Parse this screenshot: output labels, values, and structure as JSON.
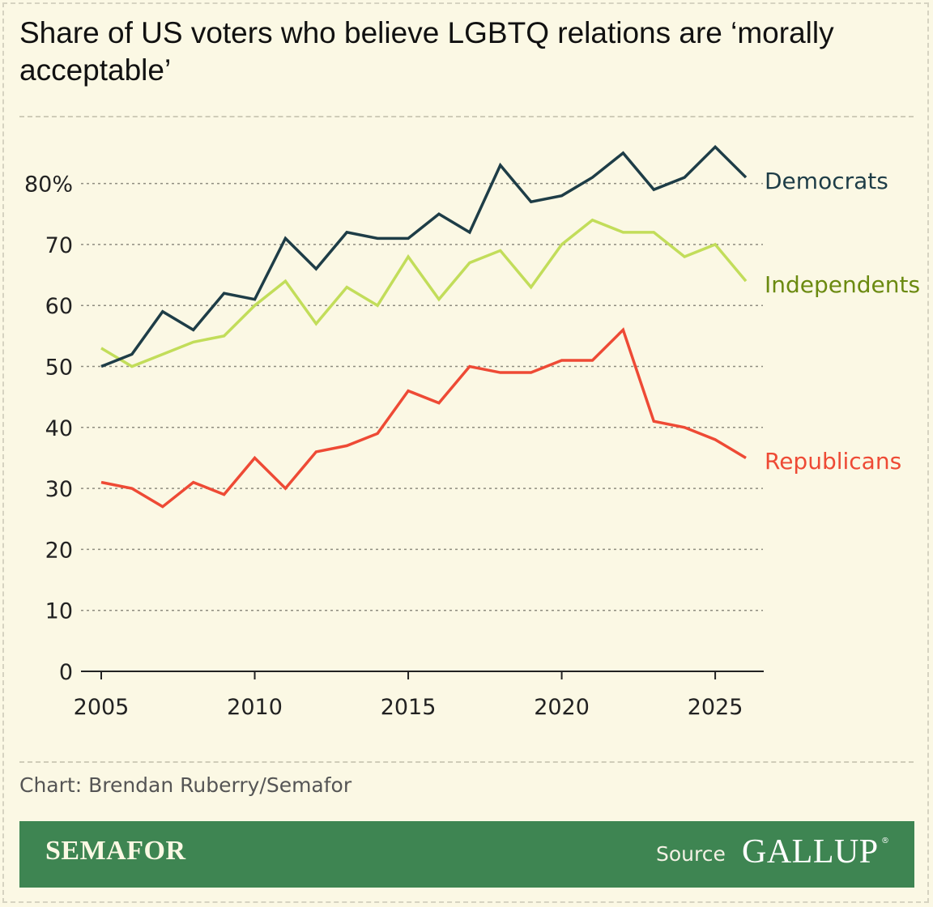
{
  "title": "Share of US voters who believe LGBTQ relations are ‘morally acceptable’",
  "credit": "Chart: Brendan Ruberry/Semafor",
  "footer": {
    "brand": "SEMAFOR",
    "source_label": "Source",
    "source_name": "GALLUP",
    "source_mark": "®"
  },
  "colors": {
    "background": "#fbf8e4",
    "democrats": "#1e3d47",
    "independents": "#c2dd5a",
    "independents_label": "#6b8a10",
    "republicans": "#ee4a35",
    "banner": "#3e8552"
  },
  "chart_data": {
    "type": "line",
    "title": "Share of US voters who believe LGBTQ relations are ‘morally acceptable’",
    "xlabel": "",
    "ylabel": "",
    "x": [
      2005,
      2006,
      2007,
      2008,
      2009,
      2010,
      2011,
      2012,
      2013,
      2014,
      2015,
      2016,
      2017,
      2018,
      2019,
      2020,
      2021,
      2022,
      2023,
      2024,
      2025,
      2026
    ],
    "xlim": [
      2005,
      2026
    ],
    "ylim": [
      0,
      85
    ],
    "x_ticks": [
      2005,
      2010,
      2015,
      2020,
      2025
    ],
    "y_ticks": [
      0,
      10,
      20,
      30,
      40,
      50,
      60,
      70,
      80
    ],
    "y_tick_labels": [
      "0",
      "10",
      "20",
      "30",
      "40",
      "50",
      "60",
      "70",
      "80%"
    ],
    "grid": "horizontal dashed",
    "legend": "direct labels at line ends",
    "series": [
      {
        "name": "Democrats",
        "color": "#1e3d47",
        "values": [
          50,
          52,
          59,
          56,
          62,
          61,
          71,
          66,
          72,
          71,
          71,
          75,
          72,
          83,
          77,
          78,
          81,
          85,
          79,
          81,
          86,
          81
        ]
      },
      {
        "name": "Independents",
        "color": "#c2dd5a",
        "values": [
          53,
          50,
          52,
          54,
          55,
          60,
          64,
          57,
          63,
          60,
          68,
          61,
          67,
          69,
          63,
          70,
          74,
          72,
          72,
          68,
          70,
          64
        ]
      },
      {
        "name": "Republicans",
        "color": "#ee4a35",
        "values": [
          31,
          30,
          27,
          31,
          29,
          35,
          30,
          36,
          37,
          39,
          46,
          44,
          50,
          49,
          49,
          51,
          51,
          56,
          41,
          40,
          38,
          35
        ]
      }
    ]
  }
}
